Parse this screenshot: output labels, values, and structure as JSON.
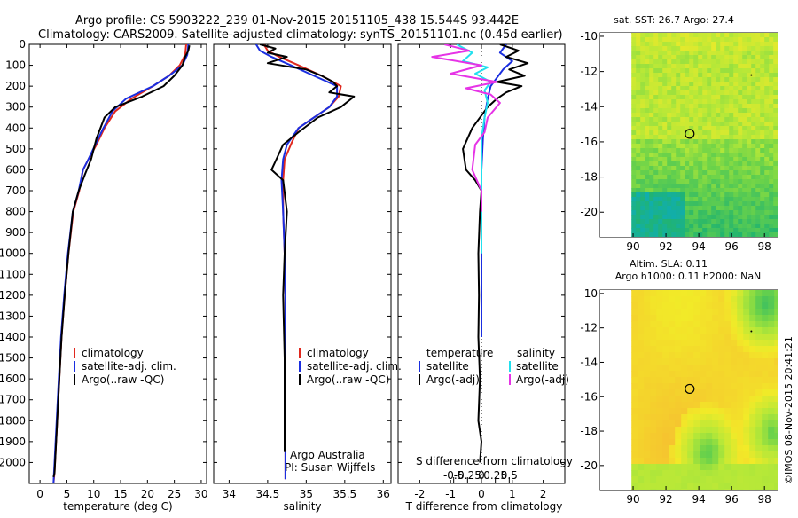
{
  "header": {
    "line1": "Argo profile: CS 5903222_239 01-Nov-2015 20151105_438 15.544S 93.442E",
    "line2": "Climatology: CARS2009. Satellite-adjusted climatology: synTS_20151101.nc (0.45d earlier)"
  },
  "side_stamp": "©IMOS 08-Nov-2015 20:41:21",
  "colors": {
    "climatology": "#e0281e",
    "satellite": "#1a2ee0",
    "argo": "#000000",
    "sat_diff_s": "#22e0ee",
    "argo_diff_s": "#e633e6",
    "profile_dot": "#000000"
  },
  "chart_data": [
    {
      "id": "temperature",
      "type": "line",
      "xlabel": "temperature (deg C)",
      "ylabel": "",
      "xlim": [
        -2,
        31
      ],
      "ylim": [
        2100,
        0
      ],
      "xticks": [
        0,
        5,
        10,
        15,
        20,
        25,
        30
      ],
      "yticks": [
        0,
        100,
        200,
        300,
        400,
        500,
        600,
        700,
        800,
        900,
        1000,
        1100,
        1200,
        1300,
        1400,
        1500,
        1600,
        1700,
        1800,
        1900,
        2000
      ],
      "legend": [
        "climatology",
        "satellite-adj. clim.",
        "Argo(..raw -QC)"
      ],
      "series": [
        {
          "name": "climatology",
          "color": "#e0281e",
          "x": [
            27.2,
            27,
            26,
            24,
            21,
            17,
            14,
            12,
            10.5,
            9,
            8,
            7.3,
            6.2,
            5.3,
            4.6,
            4,
            3.6,
            3.2,
            2.9,
            2.7,
            2.5
          ],
          "y": [
            0,
            50,
            100,
            150,
            200,
            260,
            320,
            400,
            480,
            550,
            600,
            700,
            800,
            1000,
            1200,
            1400,
            1600,
            1800,
            1950,
            2050,
            2100
          ]
        },
        {
          "name": "satellite-adj. clim.",
          "color": "#1a2ee0",
          "x": [
            27.6,
            27.4,
            26.5,
            24,
            21,
            16,
            13.5,
            11.8,
            10.3,
            9,
            8,
            7.2,
            6.1,
            5.2,
            4.5,
            3.9,
            3.5,
            3.1,
            2.8,
            2.6,
            2.5
          ],
          "y": [
            0,
            50,
            100,
            150,
            200,
            260,
            320,
            400,
            480,
            550,
            600,
            700,
            800,
            1000,
            1200,
            1400,
            1600,
            1800,
            1950,
            2050,
            2100
          ]
        },
        {
          "name": "Argo(..raw -QC)",
          "color": "#000000",
          "x": [
            27.8,
            27.6,
            27,
            26.5,
            25,
            23,
            19,
            14,
            12,
            10.5,
            9.5,
            8.4,
            7.2,
            6.1,
            5.3,
            4.6,
            4,
            3.6,
            3.2,
            2.9,
            2.7,
            2.5
          ],
          "y": [
            5,
            30,
            60,
            100,
            150,
            200,
            250,
            300,
            350,
            450,
            550,
            620,
            700,
            800,
            1000,
            1200,
            1400,
            1600,
            1800,
            1950,
            2050,
            2070
          ]
        }
      ]
    },
    {
      "id": "salinity",
      "type": "line",
      "xlabel": "salinity",
      "ylabel": "",
      "xlim": [
        33.8,
        36.1
      ],
      "ylim": [
        2100,
        0
      ],
      "xticks": [
        34,
        34.5,
        35,
        35.5,
        36
      ],
      "xtick_labels": [
        "34",
        "34.5",
        "35",
        "35.5",
        "36"
      ],
      "yticks": [
        0,
        100,
        200,
        300,
        400,
        500,
        600,
        700,
        800,
        900,
        1000,
        1100,
        1200,
        1300,
        1400,
        1500,
        1600,
        1700,
        1800,
        1900,
        2000
      ],
      "legend": [
        "climatology",
        "satellite-adj. clim.",
        "Argo(..raw -QC)"
      ],
      "annotations": [
        "Argo Australia",
        "PI: Susan Wijffels"
      ],
      "series": [
        {
          "name": "climatology",
          "color": "#e0281e",
          "x": [
            34.45,
            34.5,
            34.65,
            34.9,
            35.2,
            35.45,
            35.42,
            35.3,
            35.1,
            34.9,
            34.8,
            34.72,
            34.7,
            34.7,
            34.72,
            34.73,
            34.73,
            34.73,
            34.73,
            34.73
          ],
          "y": [
            0,
            30,
            60,
            100,
            150,
            200,
            250,
            300,
            350,
            400,
            480,
            550,
            650,
            800,
            1000,
            1200,
            1400,
            1600,
            1800,
            2080
          ]
        },
        {
          "name": "satellite-adj. clim.",
          "color": "#1a2ee0",
          "x": [
            34.35,
            34.4,
            34.55,
            34.8,
            35.1,
            35.4,
            35.4,
            35.3,
            35.1,
            34.9,
            34.75,
            34.7,
            34.68,
            34.7,
            34.72,
            34.73,
            34.73,
            34.73,
            34.73,
            34.73
          ],
          "y": [
            0,
            30,
            60,
            100,
            150,
            200,
            250,
            300,
            350,
            400,
            480,
            550,
            650,
            800,
            1000,
            1200,
            1400,
            1600,
            1800,
            2080
          ]
        },
        {
          "name": "Argo(..raw -QC)",
          "color": "#000000",
          "x": [
            34.4,
            34.6,
            34.5,
            34.75,
            34.5,
            35,
            35.2,
            35.35,
            35.4,
            35.3,
            35.62,
            35.45,
            35.15,
            34.9,
            34.7,
            34.6,
            34.55,
            34.7,
            34.75,
            34.72,
            34.7,
            34.72,
            34.72,
            34.72
          ],
          "y": [
            0,
            20,
            40,
            60,
            90,
            120,
            150,
            180,
            200,
            230,
            250,
            300,
            350,
            420,
            480,
            560,
            600,
            650,
            800,
            1000,
            1200,
            1500,
            1800,
            1950
          ]
        }
      ]
    },
    {
      "id": "difference",
      "type": "line",
      "xlabel": "T difference from climatology",
      "x2label": "S difference from climatology",
      "xlim": [
        -2.7,
        2.7
      ],
      "ylim": [
        2100,
        0
      ],
      "xticks": [
        -2,
        -1,
        0,
        1,
        2
      ],
      "x2ticks": [
        -0.5,
        -0.25,
        0,
        0.25,
        0.5
      ],
      "x2tick_labels": [
        "-0.5",
        "-0.25",
        "0",
        "0.25",
        "0.5"
      ],
      "yticks": [
        0,
        100,
        200,
        300,
        400,
        500,
        600,
        700,
        800,
        900,
        1000,
        1100,
        1200,
        1300,
        1400,
        1500,
        1600,
        1700,
        1800,
        1900,
        2000
      ],
      "legend_temperature_title": "temperature",
      "legend_salinity_title": "salinity",
      "legend": [
        "satellite",
        "Argo(-adj)",
        "satellite",
        "Argo(-adj)"
      ],
      "series": [
        {
          "name": "T satellite",
          "color": "#1a2ee0",
          "x": [
            0.8,
            0.6,
            1.0,
            0.7,
            0.5,
            0.3,
            0.2,
            0.1,
            0.05,
            0,
            0,
            0
          ],
          "y": [
            0,
            40,
            80,
            120,
            160,
            200,
            260,
            350,
            450,
            600,
            900,
            1400
          ]
        },
        {
          "name": "T Argo(-adj)",
          "color": "#000000",
          "x": [
            0.6,
            1.2,
            0.8,
            1.5,
            0.9,
            1.4,
            0.5,
            1.3,
            0.8,
            0.5,
            0.2,
            -0.3,
            -0.6,
            -0.5,
            -0.2,
            0,
            -0.05,
            -0.1,
            -0.08,
            -0.1,
            -0.05,
            -0.1,
            0,
            -0.05
          ],
          "y": [
            0,
            30,
            60,
            90,
            120,
            150,
            180,
            200,
            230,
            260,
            300,
            400,
            500,
            600,
            650,
            700,
            800,
            1000,
            1200,
            1400,
            1600,
            1800,
            1900,
            2000
          ]
        },
        {
          "name": "S satellite",
          "color": "#22e0ee",
          "x": [
            -0.8,
            -0.3,
            -0.6,
            0.2,
            -0.2,
            0.3,
            0.1,
            0.2,
            0.1,
            0,
            0,
            0
          ],
          "y": [
            0,
            40,
            80,
            110,
            140,
            180,
            220,
            280,
            350,
            450,
            700,
            1000
          ]
        },
        {
          "name": "S Argo(-adj)",
          "color": "#e633e6",
          "x": [
            -1.2,
            -0.4,
            -1.6,
            0,
            -1.0,
            0.5,
            -0.5,
            0.3,
            0.6,
            0.2,
            0.1,
            -0.2,
            -0.3,
            0,
            0
          ],
          "y": [
            0,
            30,
            60,
            100,
            140,
            180,
            210,
            240,
            280,
            350,
            420,
            480,
            600,
            700,
            800
          ]
        }
      ]
    },
    {
      "id": "sst_map",
      "type": "heatmap",
      "title": "sat. SST: 26.7 Argo: 27.4",
      "xlim": [
        88,
        98.8
      ],
      "ylim": [
        -21.4,
        -9.8
      ],
      "xticks": [
        90,
        92,
        94,
        96,
        98
      ],
      "yticks": [
        -10,
        -12,
        -14,
        -16,
        -18,
        -20
      ],
      "profile": [
        93.442,
        -15.544
      ]
    },
    {
      "id": "sla_map",
      "type": "heatmap",
      "title_line1": "Altim. SLA: 0.11",
      "title_line2": "Argo h1000: 0.11 h2000: NaN",
      "xlim": [
        88,
        98.8
      ],
      "ylim": [
        -21.4,
        -9.8
      ],
      "xticks": [
        90,
        92,
        94,
        96,
        98
      ],
      "yticks": [
        -10,
        -12,
        -14,
        -16,
        -18,
        -20
      ],
      "profile": [
        93.442,
        -15.544
      ]
    }
  ]
}
